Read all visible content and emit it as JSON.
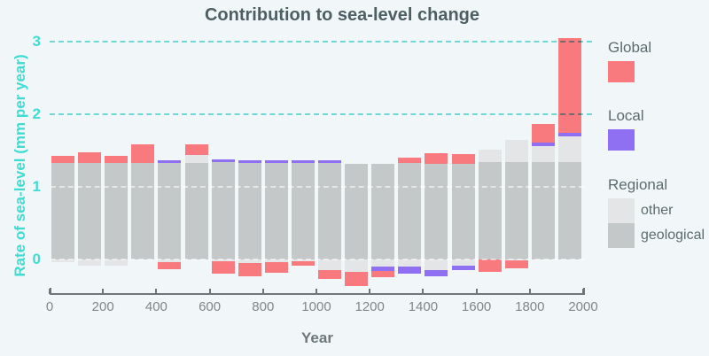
{
  "title": "Contribution to sea-level change",
  "legend": {
    "global_label": "Global",
    "local_label": "Local",
    "regional_label": "Regional",
    "other_label": "other",
    "geological_label": "geological"
  },
  "colors": {
    "background": "#f1f7f9",
    "title_text": "#4e5f63",
    "cyan_text": "#3edcd2",
    "cyan_gridline": "#79ded8",
    "axis_text": "#7e8789",
    "axis_line": "#6d777a",
    "legend_text": "#5d6b6f"
  },
  "chart_data": {
    "type": "bar",
    "stacked": true,
    "title": "Contribution to sea-level change",
    "xlabel": "Year",
    "ylabel": "Rate of sea-level (mm per year)",
    "x_ticks": [
      0,
      200,
      400,
      600,
      800,
      1000,
      1200,
      1400,
      1600,
      1800,
      2000
    ],
    "y_ticks": [
      0,
      1,
      2,
      3
    ],
    "xlim": [
      0,
      2000
    ],
    "ylim": [
      -0.5,
      3.1
    ],
    "grid_dashed_cyan_at": [
      2,
      3
    ],
    "grid_dashed_white_at": [
      0,
      1
    ],
    "legend_position": "right",
    "series_colors": {
      "global": "#f8797e",
      "local": "#8f6ff2",
      "other": "#e3e5e6",
      "geological": "#c5c8c8"
    },
    "bars": [
      {
        "x_start": 0,
        "x_end": 100,
        "pos": [
          [
            "geological",
            1.33
          ],
          [
            "global",
            0.1
          ]
        ],
        "neg": [
          [
            "other",
            0.04
          ]
        ]
      },
      {
        "x_start": 100,
        "x_end": 200,
        "pos": [
          [
            "geological",
            1.33
          ],
          [
            "global",
            0.15
          ]
        ],
        "neg": [
          [
            "other",
            0.08
          ]
        ]
      },
      {
        "x_start": 200,
        "x_end": 300,
        "pos": [
          [
            "geological",
            1.33
          ],
          [
            "global",
            0.1
          ]
        ],
        "neg": [
          [
            "other",
            0.08
          ]
        ]
      },
      {
        "x_start": 300,
        "x_end": 400,
        "pos": [
          [
            "geological",
            1.33
          ],
          [
            "global",
            0.26
          ]
        ],
        "neg": []
      },
      {
        "x_start": 400,
        "x_end": 500,
        "pos": [
          [
            "geological",
            1.33
          ],
          [
            "local",
            0.03
          ]
        ],
        "neg": [
          [
            "other",
            0.04
          ],
          [
            "global",
            0.1
          ]
        ]
      },
      {
        "x_start": 500,
        "x_end": 600,
        "pos": [
          [
            "geological",
            1.33
          ],
          [
            "other",
            0.11
          ],
          [
            "global",
            0.14
          ]
        ],
        "neg": []
      },
      {
        "x_start": 600,
        "x_end": 700,
        "pos": [
          [
            "geological",
            1.34
          ],
          [
            "local",
            0.04
          ]
        ],
        "neg": [
          [
            "other",
            0.02
          ],
          [
            "global",
            0.18
          ]
        ]
      },
      {
        "x_start": 700,
        "x_end": 800,
        "pos": [
          [
            "geological",
            1.33
          ],
          [
            "local",
            0.03
          ]
        ],
        "neg": [
          [
            "other",
            0.05
          ],
          [
            "global",
            0.18
          ]
        ]
      },
      {
        "x_start": 800,
        "x_end": 900,
        "pos": [
          [
            "geological",
            1.33
          ],
          [
            "local",
            0.04
          ]
        ],
        "neg": [
          [
            "other",
            0.04
          ],
          [
            "global",
            0.14
          ]
        ]
      },
      {
        "x_start": 900,
        "x_end": 1000,
        "pos": [
          [
            "geological",
            1.33
          ],
          [
            "local",
            0.03
          ]
        ],
        "neg": [
          [
            "other",
            0.03
          ],
          [
            "global",
            0.06
          ]
        ]
      },
      {
        "x_start": 1000,
        "x_end": 1100,
        "pos": [
          [
            "geological",
            1.33
          ],
          [
            "local",
            0.03
          ]
        ],
        "neg": [
          [
            "other",
            0.15
          ],
          [
            "global",
            0.12
          ]
        ]
      },
      {
        "x_start": 1100,
        "x_end": 1200,
        "pos": [
          [
            "geological",
            1.32
          ]
        ],
        "neg": [
          [
            "other",
            0.17
          ],
          [
            "global",
            0.2
          ]
        ]
      },
      {
        "x_start": 1200,
        "x_end": 1300,
        "pos": [
          [
            "geological",
            1.32
          ]
        ],
        "neg": [
          [
            "other",
            0.1
          ],
          [
            "local",
            0.06
          ],
          [
            "global",
            0.09
          ]
        ]
      },
      {
        "x_start": 1300,
        "x_end": 1400,
        "pos": [
          [
            "geological",
            1.33
          ],
          [
            "global",
            0.07
          ]
        ],
        "neg": [
          [
            "other",
            0.1
          ],
          [
            "local",
            0.1
          ]
        ]
      },
      {
        "x_start": 1400,
        "x_end": 1500,
        "pos": [
          [
            "geological",
            1.32
          ],
          [
            "global",
            0.14
          ]
        ],
        "neg": [
          [
            "other",
            0.15
          ],
          [
            "local",
            0.08
          ]
        ]
      },
      {
        "x_start": 1500,
        "x_end": 1600,
        "pos": [
          [
            "geological",
            1.32
          ],
          [
            "global",
            0.13
          ]
        ],
        "neg": [
          [
            "other",
            0.08
          ],
          [
            "local",
            0.07
          ]
        ]
      },
      {
        "x_start": 1600,
        "x_end": 1700,
        "pos": [
          [
            "geological",
            1.34
          ],
          [
            "other",
            0.17
          ]
        ],
        "neg": [
          [
            "global",
            0.17
          ]
        ]
      },
      {
        "x_start": 1700,
        "x_end": 1800,
        "pos": [
          [
            "geological",
            1.34
          ],
          [
            "other",
            0.31
          ]
        ],
        "neg": [
          [
            "other",
            0.01
          ],
          [
            "global",
            0.11
          ]
        ]
      },
      {
        "x_start": 1800,
        "x_end": 1900,
        "pos": [
          [
            "geological",
            1.34
          ],
          [
            "other",
            0.22
          ],
          [
            "local",
            0.05
          ],
          [
            "global",
            0.25
          ]
        ],
        "neg": []
      },
      {
        "x_start": 1900,
        "x_end": 2000,
        "pos": [
          [
            "geological",
            1.34
          ],
          [
            "other",
            0.35
          ],
          [
            "local",
            0.05
          ],
          [
            "global",
            1.31
          ]
        ],
        "neg": []
      }
    ]
  }
}
